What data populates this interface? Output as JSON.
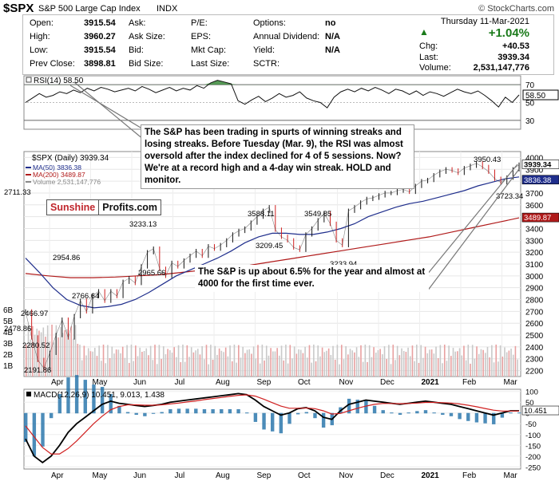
{
  "header": {
    "symbol": "$SPX",
    "name": "S&P 500 Large Cap Index",
    "exchange": "INDX",
    "source": "© StockCharts.com"
  },
  "quote": {
    "date": "Thursday  11-Mar-2021",
    "open_label": "Open:",
    "open": "3915.54",
    "high_label": "High:",
    "high": "3960.27",
    "low_label": "Low:",
    "low": "3915.54",
    "prev_label": "Prev Close:",
    "prev": "3898.81",
    "ask_label": "Ask:",
    "asksize_label": "Ask Size:",
    "bid_label": "Bid:",
    "bidsize_label": "Bid Size:",
    "pe_label": "P/E:",
    "eps_label": "EPS:",
    "mktcap_label": "Mkt Cap:",
    "lastsize_label": "Last Size:",
    "options_label": "Options:",
    "options": "no",
    "div_label": "Annual Dividend:",
    "div": "N/A",
    "yield_label": "Yield:",
    "yield": "N/A",
    "sctr_label": "SCTR:",
    "pct_change": "+1.04%",
    "chg_label": "Chg:",
    "chg": "+40.53",
    "last_label": "Last:",
    "last": "3939.34",
    "volume_label": "Volume:",
    "volume": "2,531,147,776",
    "accent_up": "#1a7a1a"
  },
  "annotations": {
    "rsi_note": "The S&P has been trading in spurts of winning streaks and losing streaks. Before Tuesday (Mar. 9), the RSI was almost oversold after the index declined for 4 of 5 sessions. Now? We're at a record high and a 4-day win streak. HOLD and monitor.",
    "price_note": "The S&P is up about 6.5% for the year and almost at 4000 for the first time ever.",
    "logo_part1": "Sunshine",
    "logo_part2": "Profits.com"
  },
  "chart_data": [
    {
      "panel": "rsi",
      "type": "line",
      "title": "RSI(14) 58.50",
      "ylim": [
        20,
        80
      ],
      "y_ticks": [
        30,
        50,
        70
      ],
      "current_label": "58.50",
      "overbought": 70,
      "oversold": 30,
      "values": [
        50,
        55,
        60,
        56,
        58,
        62,
        60,
        64,
        61,
        66,
        63,
        67,
        65,
        62,
        64,
        66,
        63,
        68,
        65,
        61,
        64,
        67,
        63,
        66,
        64,
        69,
        66,
        72,
        75,
        73,
        71,
        52,
        48,
        53,
        57,
        51,
        55,
        60,
        56,
        58,
        62,
        55,
        52,
        50,
        44,
        56,
        62,
        65,
        62,
        66,
        63,
        67,
        64,
        60,
        65,
        63,
        59,
        63,
        58,
        62,
        60,
        57,
        61,
        65,
        62,
        60,
        63,
        58,
        52,
        45,
        56,
        50,
        58.5
      ]
    },
    {
      "panel": "price",
      "type": "line",
      "title": "$SPX (Daily) 3939.34",
      "legend": [
        {
          "name": "MA(50) 3836.38",
          "color": "#1f2e8c"
        },
        {
          "name": "MA(200) 3489.87",
          "color": "#b01a1a"
        },
        {
          "name": "Volume 2,531,147,776",
          "color": "#888888"
        }
      ],
      "ylim": [
        2150,
        4050
      ],
      "y_ticks": [
        2200,
        2300,
        2400,
        2500,
        2600,
        2700,
        2800,
        2900,
        3000,
        3100,
        3200,
        3300,
        3400,
        3500,
        3600,
        3700,
        3800,
        3900,
        4000
      ],
      "volume_ticks": [
        "1B",
        "2B",
        "3B",
        "4B",
        "5B",
        "6B"
      ],
      "right_labels": [
        "3939.34",
        "3836.38",
        "3489.87"
      ],
      "x_labels": [
        "Apr",
        "May",
        "Jun",
        "Jul",
        "Aug",
        "Sep",
        "Oct",
        "Nov",
        "Dec",
        "2021",
        "Feb",
        "Mar"
      ],
      "close": [
        2700,
        2480,
        2290,
        2220,
        2350,
        2500,
        2630,
        2480,
        2660,
        2790,
        2700,
        2830,
        2870,
        2790,
        2870,
        2830,
        2950,
        2980,
        2940,
        3080,
        3200,
        3230,
        3060,
        3000,
        3110,
        3080,
        3130,
        3170,
        3210,
        3170,
        3250,
        3230,
        3260,
        3300,
        3350,
        3380,
        3400,
        3450,
        3500,
        3550,
        3580,
        3390,
        3330,
        3300,
        3240,
        3220,
        3350,
        3400,
        3470,
        3530,
        3440,
        3300,
        3260,
        3550,
        3580,
        3620,
        3650,
        3660,
        3680,
        3700,
        3700,
        3720,
        3730,
        3710,
        3760,
        3800,
        3810,
        3850,
        3880,
        3900,
        3890,
        3870,
        3910,
        3930,
        3950,
        3920,
        3880,
        3820,
        3790,
        3830,
        3900,
        3939
      ],
      "ma50": [
        3150,
        3030,
        2900,
        2800,
        2750,
        2730,
        2740,
        2760,
        2800,
        2860,
        2930,
        3000,
        3050,
        3100,
        3150,
        3210,
        3280,
        3330,
        3360,
        3360,
        3350,
        3350,
        3370,
        3400,
        3440,
        3500,
        3540,
        3580,
        3610,
        3630,
        3660,
        3690,
        3720,
        3760,
        3790,
        3820,
        3836
      ],
      "ma200": [
        3020,
        3000,
        2985,
        2985,
        2990,
        3000,
        3010,
        3030,
        3050,
        3070,
        3090,
        3120,
        3150,
        3180,
        3210,
        3240,
        3270,
        3300,
        3330,
        3370,
        3410,
        3450,
        3490
      ],
      "annotations": [
        "2711.33",
        "2466.97",
        "2478.86",
        "2280.52",
        "2191.86",
        "2766.64",
        "2954.86",
        "3233.13",
        "2965.66",
        "3588.11",
        "3209.45",
        "3549.85",
        "3233.94",
        "3950.43",
        "3723.34"
      ]
    },
    {
      "panel": "macd",
      "type": "line",
      "title": "MACD(12,26,9) 10.451, 9.013, 1.438",
      "ylim": [
        -260,
        110
      ],
      "y_ticks": [
        -250,
        -200,
        -150,
        -100,
        -50,
        0,
        50,
        100
      ],
      "current_label": "10.451",
      "x_labels": [
        "Apr",
        "May",
        "Jun",
        "Jul",
        "Aug",
        "Sep",
        "Oct",
        "Nov",
        "Dec",
        "2021",
        "Feb",
        "Mar"
      ],
      "series": [
        {
          "name": "MACD",
          "color": "#000000",
          "values": [
            -120,
            -200,
            -230,
            -200,
            -150,
            -90,
            -50,
            -20,
            10,
            40,
            55,
            45,
            40,
            35,
            30,
            35,
            40,
            50,
            55,
            60,
            65,
            70,
            75,
            80,
            85,
            90,
            85,
            60,
            30,
            10,
            -10,
            0,
            20,
            25,
            10,
            -20,
            -30,
            10,
            40,
            50,
            60,
            55,
            50,
            45,
            40,
            45,
            50,
            55,
            50,
            45,
            40,
            30,
            20,
            10,
            0,
            -10,
            0,
            10,
            10
          ]
        },
        {
          "name": "Signal",
          "color": "#d02020",
          "values": [
            -60,
            -110,
            -160,
            -190,
            -190,
            -165,
            -130,
            -90,
            -50,
            -15,
            15,
            30,
            38,
            38,
            36,
            36,
            38,
            42,
            46,
            51,
            56,
            62,
            67,
            72,
            77,
            82,
            84,
            78,
            64,
            48,
            32,
            22,
            22,
            23,
            20,
            10,
            -5,
            -2,
            10,
            22,
            32,
            40,
            44,
            44,
            43,
            44,
            46,
            49,
            49,
            48,
            46,
            42,
            36,
            29,
            21,
            13,
            9,
            9,
            9
          ]
        }
      ],
      "histogram_color": "#1f6fa8"
    }
  ]
}
